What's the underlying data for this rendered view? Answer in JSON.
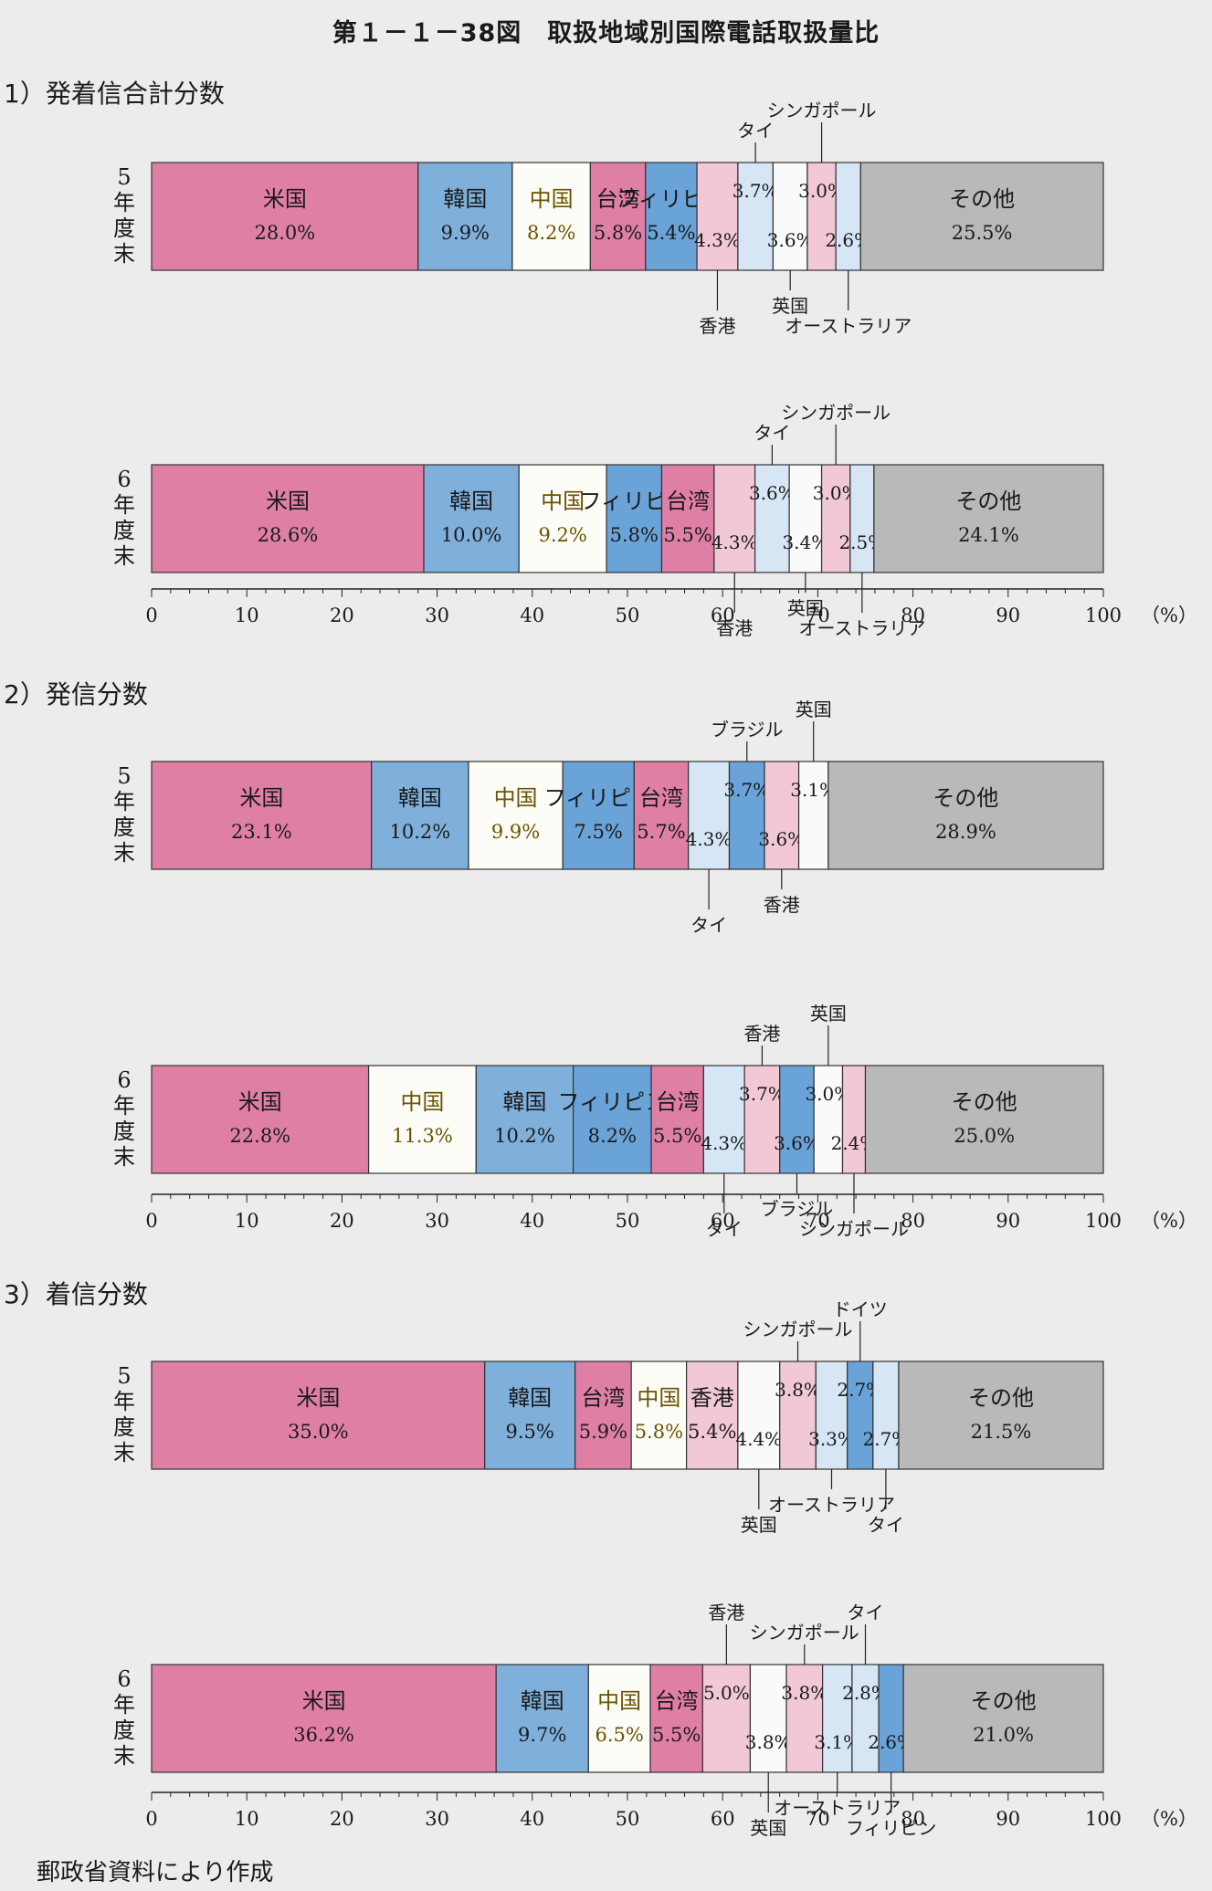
{
  "title": "第１－１－38図　取扱地域別国際電話取扱量比",
  "source": "郵政省資料により作成",
  "colors": {
    "米国": "#e07fa6",
    "韓国": "#7fb0dc",
    "中国": "#fdfdf8",
    "台湾": "#e07fa6",
    "フィリピン": "#6aa3d8",
    "香港": "#f2c8d6",
    "タイ": "#d6e6f4",
    "英国": "#fafafa",
    "シンガポール": "#f2c8d6",
    "オーストラリア": "#d6e6f4",
    "ドイツ": "#6aa3d8",
    "ブラジル": "#6aa3d8",
    "その他": "#b9b9b9"
  },
  "chart_data": [
    {
      "section_label": "1）発着信合計分数",
      "type": "bar",
      "stacked": true,
      "orientation": "horizontal",
      "xlim": [
        0,
        100
      ],
      "xticks": [
        "0",
        "10",
        "20",
        "30",
        "40",
        "50",
        "60",
        "70",
        "80",
        "90",
        "100"
      ],
      "xunit": "（%）",
      "bars": [
        {
          "row_label": "5年度末",
          "segments": [
            {
              "name": "米国",
              "value": 28.0,
              "label": "28.0%"
            },
            {
              "name": "韓国",
              "value": 9.9,
              "label": "9.9%"
            },
            {
              "name": "中国",
              "value": 8.2,
              "label": "8.2%"
            },
            {
              "name": "台湾",
              "value": 5.8,
              "label": "5.8%"
            },
            {
              "name": "フィリピン",
              "value": 5.4,
              "label": "5.4%"
            },
            {
              "name": "香港",
              "value": 4.3,
              "label": "4.3%"
            },
            {
              "name": "タイ",
              "value": 3.7,
              "label": "3.7%"
            },
            {
              "name": "英国",
              "value": 3.6,
              "label": "3.6%"
            },
            {
              "name": "シンガポール",
              "value": 3.0,
              "label": "3.0%"
            },
            {
              "name": "オーストラリア",
              "value": 2.6,
              "label": "2.6%"
            },
            {
              "name": "その他",
              "value": 25.5,
              "label": "25.5%"
            }
          ]
        },
        {
          "row_label": "6年度末",
          "segments": [
            {
              "name": "米国",
              "value": 28.6,
              "label": "28.6%"
            },
            {
              "name": "韓国",
              "value": 10.0,
              "label": "10.0%"
            },
            {
              "name": "中国",
              "value": 9.2,
              "label": "9.2%"
            },
            {
              "name": "フィリピン",
              "value": 5.8,
              "label": "5.8%"
            },
            {
              "name": "台湾",
              "value": 5.5,
              "label": "5.5%"
            },
            {
              "name": "香港",
              "value": 4.3,
              "label": "4.3%"
            },
            {
              "name": "タイ",
              "value": 3.6,
              "label": "3.6%"
            },
            {
              "name": "英国",
              "value": 3.4,
              "label": "3.4%"
            },
            {
              "name": "シンガポール",
              "value": 3.0,
              "label": "3.0%"
            },
            {
              "name": "オーストラリア",
              "value": 2.5,
              "label": "2.5%"
            },
            {
              "name": "その他",
              "value": 24.1,
              "label": "24.1%"
            }
          ]
        }
      ]
    },
    {
      "section_label": "2）発信分数",
      "type": "bar",
      "stacked": true,
      "orientation": "horizontal",
      "xlim": [
        0,
        100
      ],
      "xticks": [
        "0",
        "10",
        "20",
        "30",
        "40",
        "50",
        "60",
        "70",
        "80",
        "90",
        "100"
      ],
      "xunit": "（%）",
      "bars": [
        {
          "row_label": "5年度末",
          "segments": [
            {
              "name": "米国",
              "value": 23.1,
              "label": "23.1%"
            },
            {
              "name": "韓国",
              "value": 10.2,
              "label": "10.2%"
            },
            {
              "name": "中国",
              "value": 9.9,
              "label": "9.9%"
            },
            {
              "name": "フィリピン",
              "value": 7.5,
              "label": "7.5%"
            },
            {
              "name": "台湾",
              "value": 5.7,
              "label": "5.7%"
            },
            {
              "name": "タイ",
              "value": 4.3,
              "label": "4.3%"
            },
            {
              "name": "ブラジル",
              "value": 3.7,
              "label": "3.7%"
            },
            {
              "name": "香港",
              "value": 3.6,
              "label": "3.6%"
            },
            {
              "name": "英国",
              "value": 3.1,
              "label": "3.1%"
            },
            {
              "name": "その他",
              "value": 28.9,
              "label": "28.9%"
            }
          ]
        },
        {
          "row_label": "6年度末",
          "segments": [
            {
              "name": "米国",
              "value": 22.8,
              "label": "22.8%"
            },
            {
              "name": "中国",
              "value": 11.3,
              "label": "11.3%"
            },
            {
              "name": "韓国",
              "value": 10.2,
              "label": "10.2%"
            },
            {
              "name": "フィリピン",
              "value": 8.2,
              "label": "8.2%"
            },
            {
              "name": "台湾",
              "value": 5.5,
              "label": "5.5%"
            },
            {
              "name": "タイ",
              "value": 4.3,
              "label": "4.3%"
            },
            {
              "name": "香港",
              "value": 3.7,
              "label": "3.7%"
            },
            {
              "name": "ブラジル",
              "value": 3.6,
              "label": "3.6%"
            },
            {
              "name": "英国",
              "value": 3.0,
              "label": "3.0%"
            },
            {
              "name": "シンガポール",
              "value": 2.4,
              "label": "2.4%"
            },
            {
              "name": "その他",
              "value": 25.0,
              "label": "25.0%"
            }
          ]
        }
      ]
    },
    {
      "section_label": "3）着信分数",
      "type": "bar",
      "stacked": true,
      "orientation": "horizontal",
      "xlim": [
        0,
        100
      ],
      "xticks": [
        "0",
        "10",
        "20",
        "30",
        "40",
        "50",
        "60",
        "70",
        "80",
        "90",
        "100"
      ],
      "xunit": "（%）",
      "bars": [
        {
          "row_label": "5年度末",
          "segments": [
            {
              "name": "米国",
              "value": 35.0,
              "label": "35.0%"
            },
            {
              "name": "韓国",
              "value": 9.5,
              "label": "9.5%"
            },
            {
              "name": "台湾",
              "value": 5.9,
              "label": "5.9%"
            },
            {
              "name": "中国",
              "value": 5.8,
              "label": "5.8%"
            },
            {
              "name": "香港",
              "value": 5.4,
              "label": "5.4%"
            },
            {
              "name": "英国",
              "value": 4.4,
              "label": "4.4%"
            },
            {
              "name": "シンガポール",
              "value": 3.8,
              "label": "3.8%"
            },
            {
              "name": "オーストラリア",
              "value": 3.3,
              "label": "3.3%"
            },
            {
              "name": "ドイツ",
              "value": 2.7,
              "label": "2.7%"
            },
            {
              "name": "タイ",
              "value": 2.7,
              "label": "2.7%"
            },
            {
              "name": "その他",
              "value": 21.5,
              "label": "21.5%"
            }
          ]
        },
        {
          "row_label": "6年度末",
          "segments": [
            {
              "name": "米国",
              "value": 36.2,
              "label": "36.2%"
            },
            {
              "name": "韓国",
              "value": 9.7,
              "label": "9.7%"
            },
            {
              "name": "中国",
              "value": 6.5,
              "label": "6.5%"
            },
            {
              "name": "台湾",
              "value": 5.5,
              "label": "5.5%"
            },
            {
              "name": "香港",
              "value": 5.0,
              "label": "5.0%"
            },
            {
              "name": "英国",
              "value": 3.8,
              "label": "3.8%"
            },
            {
              "name": "シンガポール",
              "value": 3.8,
              "label": "3.8%"
            },
            {
              "name": "オーストラリア",
              "value": 3.1,
              "label": "3.1%"
            },
            {
              "name": "タイ",
              "value": 2.8,
              "label": "2.8%"
            },
            {
              "name": "フィリピン",
              "value": 2.6,
              "label": "2.6%"
            },
            {
              "name": "その他",
              "value": 21.0,
              "label": "21.0%"
            }
          ]
        }
      ]
    }
  ]
}
